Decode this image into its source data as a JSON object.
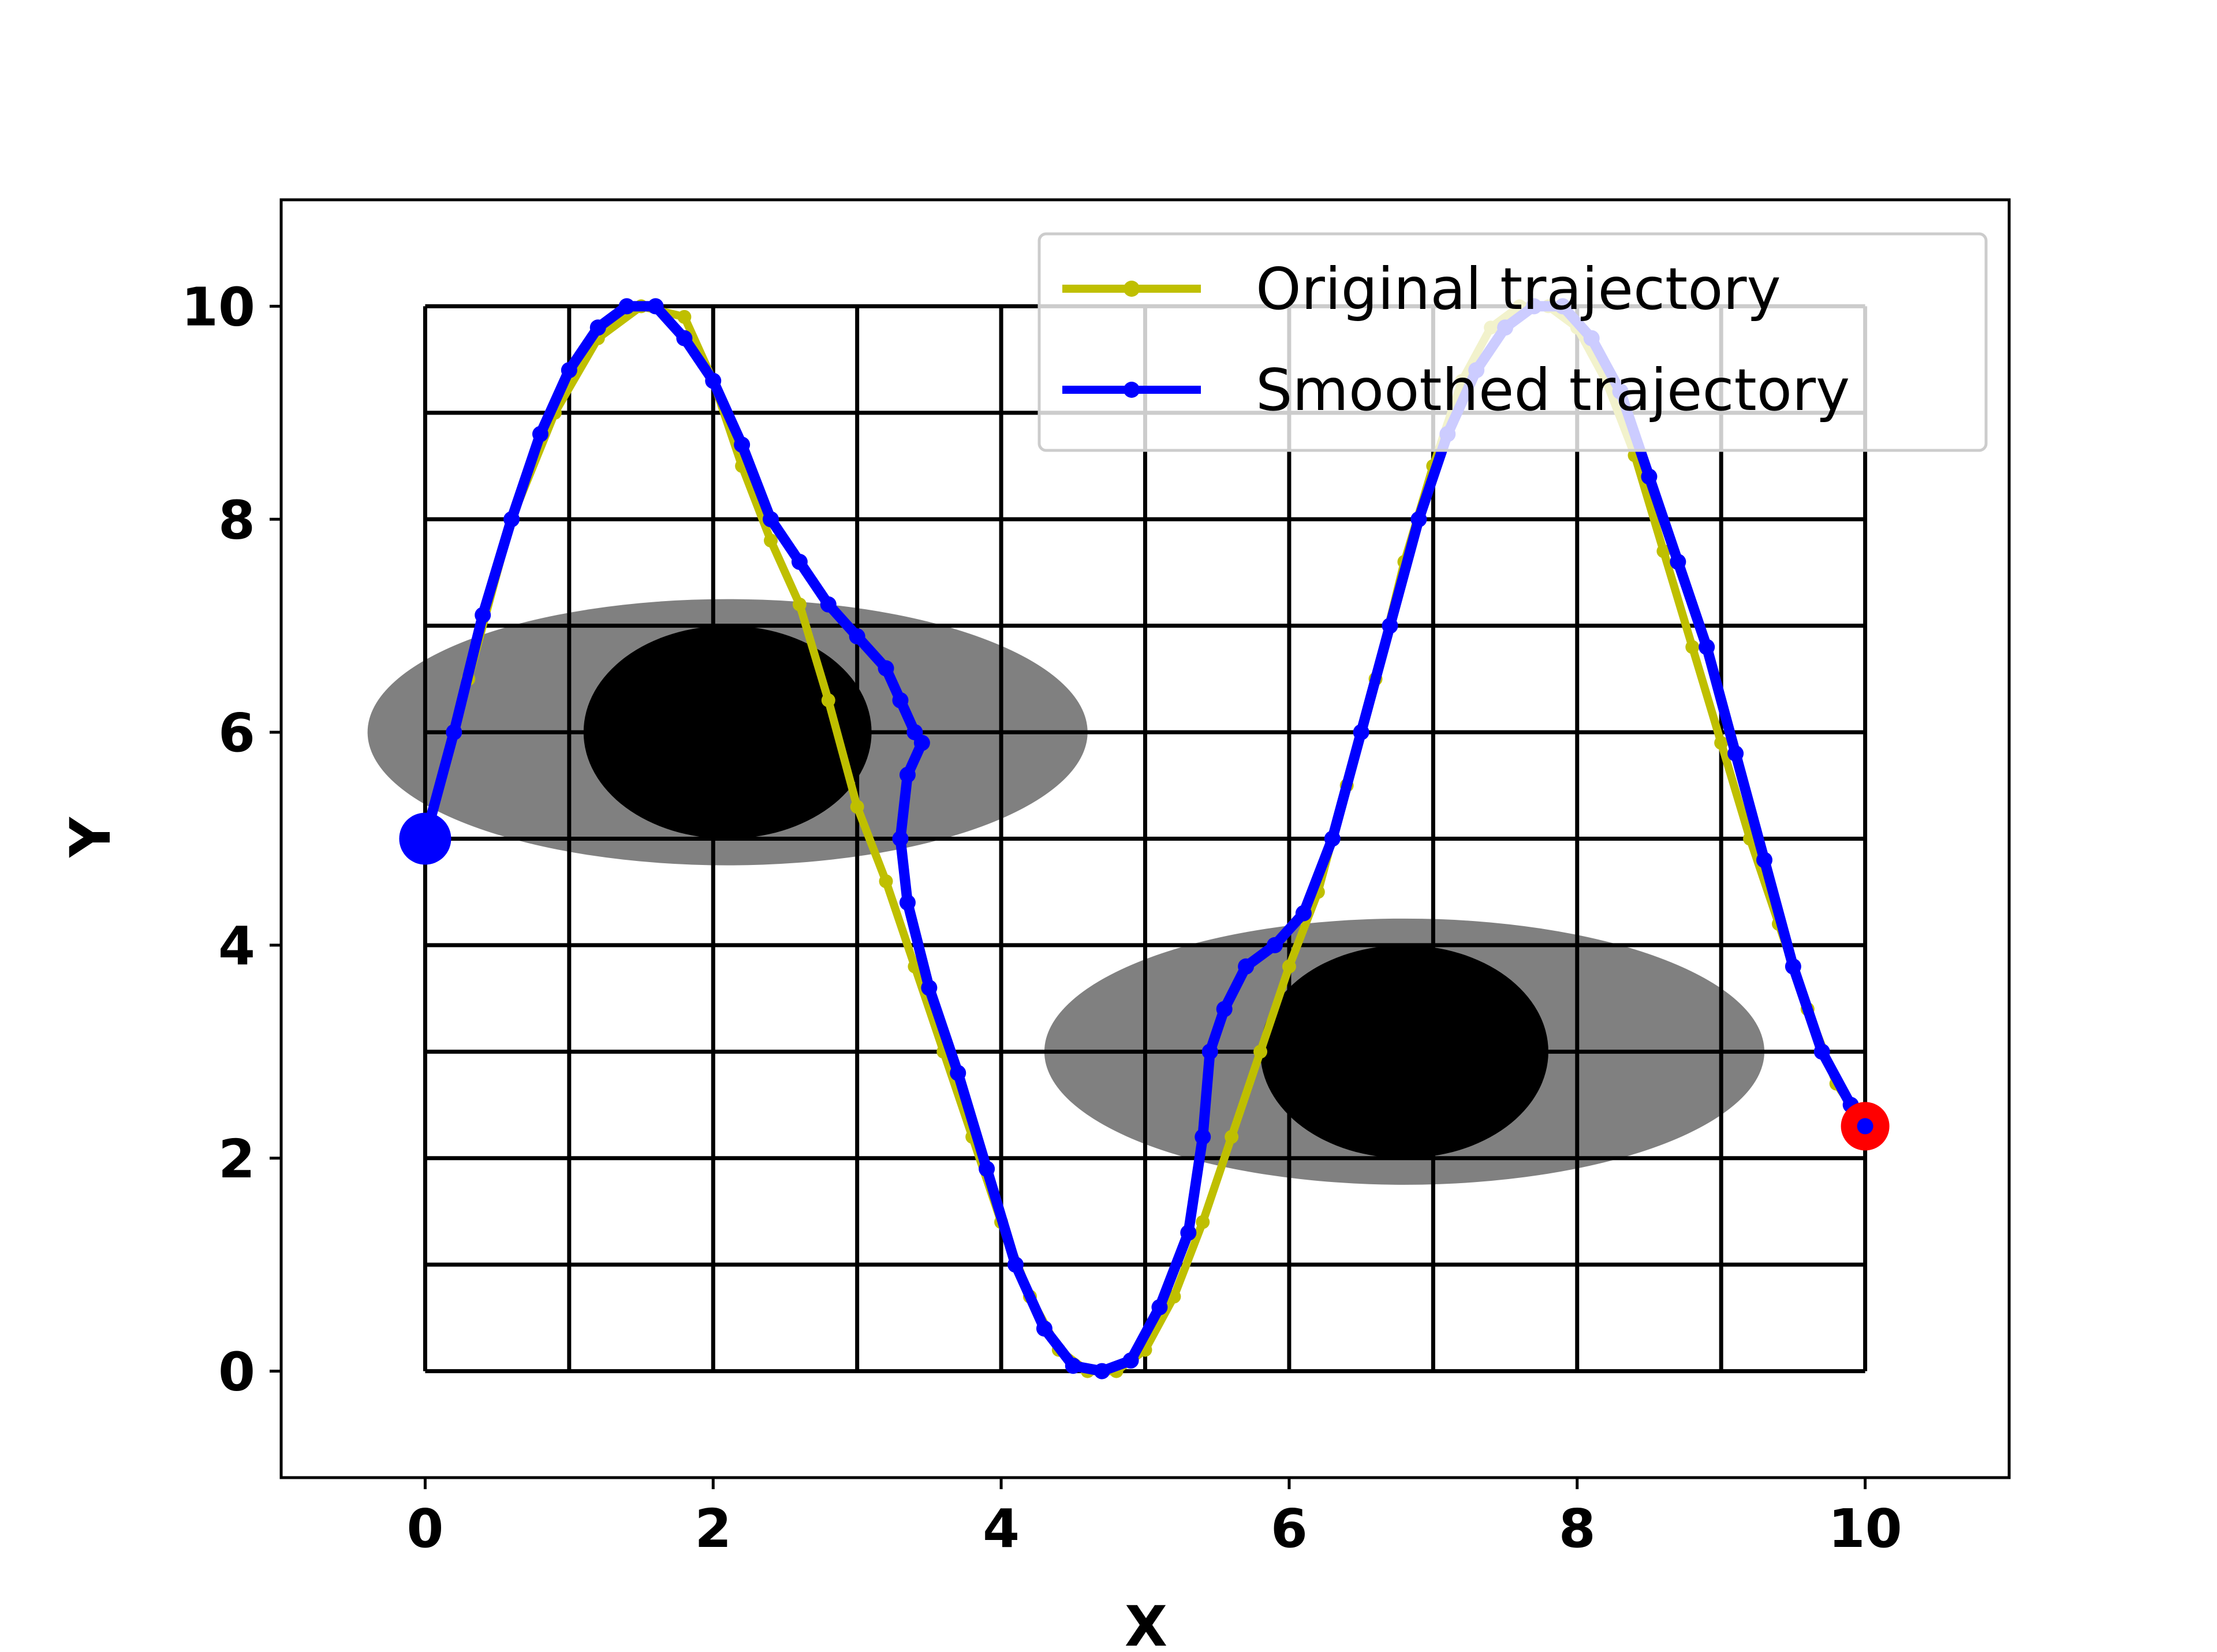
{
  "chart_data": {
    "type": "line",
    "xlabel": "X",
    "ylabel": "Y",
    "xlim": [
      -1,
      11
    ],
    "ylim": [
      -1,
      11
    ],
    "x_ticks": [
      0,
      2,
      4,
      6,
      8,
      10
    ],
    "y_ticks": [
      0,
      2,
      4,
      6,
      8,
      10
    ],
    "grid_lines": {
      "x_from": 0,
      "x_to": 10,
      "y_from": 0,
      "y_to": 10,
      "step": 1
    },
    "obstacles": [
      {
        "name": "obstacle-1",
        "cx": 2.1,
        "cy": 6.0,
        "rx_outer": 2.5,
        "ry_outer": 2.5,
        "rx_inner": 1.0,
        "ry_inner": 1.0
      },
      {
        "name": "obstacle-2",
        "cx": 6.8,
        "cy": 3.0,
        "rx_outer": 2.5,
        "ry_outer": 2.5,
        "rx_inner": 1.0,
        "ry_inner": 1.0
      }
    ],
    "start": {
      "x": 0,
      "y": 5
    },
    "goal": {
      "x": 10,
      "y": 2.3
    },
    "legend": {
      "position": "top-right",
      "entries": [
        "Original trajectory",
        "Smoothed trajectory"
      ]
    },
    "series": [
      {
        "name": "Original trajectory",
        "color": "#bfbf00",
        "x": [
          0,
          0.3,
          0.6,
          0.9,
          1.2,
          1.5,
          1.8,
          2.0,
          2.2,
          2.4,
          2.6,
          2.8,
          3.0,
          3.2,
          3.4,
          3.6,
          3.8,
          4.0,
          4.2,
          4.4,
          4.6,
          4.8,
          5.0,
          5.2,
          5.4,
          5.6,
          5.8,
          6.0,
          6.2,
          6.4,
          6.6,
          6.8,
          7.0,
          7.2,
          7.4,
          7.6,
          7.8,
          8.0,
          8.2,
          8.4,
          8.6,
          8.8,
          9.0,
          9.2,
          9.4,
          9.6,
          9.8,
          10.0
        ],
        "y": [
          5.0,
          6.5,
          8.0,
          9.0,
          9.7,
          10.0,
          9.9,
          9.3,
          8.5,
          7.8,
          7.2,
          6.3,
          5.3,
          4.6,
          3.8,
          3.0,
          2.2,
          1.4,
          0.7,
          0.2,
          0.0,
          0.0,
          0.2,
          0.7,
          1.4,
          2.2,
          3.0,
          3.8,
          4.5,
          5.5,
          6.5,
          7.6,
          8.5,
          9.3,
          9.8,
          10.0,
          10.0,
          9.8,
          9.3,
          8.6,
          7.7,
          6.8,
          5.9,
          5.0,
          4.2,
          3.4,
          2.7,
          2.3
        ]
      },
      {
        "name": "Smoothed trajectory",
        "color": "#0000ff",
        "x": [
          0,
          0.2,
          0.4,
          0.6,
          0.8,
          1.0,
          1.2,
          1.4,
          1.6,
          1.8,
          2.0,
          2.2,
          2.4,
          2.6,
          2.8,
          3.0,
          3.2,
          3.3,
          3.4,
          3.45,
          3.35,
          3.3,
          3.35,
          3.5,
          3.7,
          3.9,
          4.1,
          4.3,
          4.5,
          4.7,
          4.9,
          5.1,
          5.3,
          5.4,
          5.45,
          5.55,
          5.7,
          5.9,
          6.1,
          6.3,
          6.5,
          6.7,
          6.9,
          7.1,
          7.3,
          7.5,
          7.7,
          7.9,
          8.1,
          8.3,
          8.5,
          8.7,
          8.9,
          9.1,
          9.3,
          9.5,
          9.7,
          9.9,
          10.0
        ],
        "y": [
          5.0,
          6.0,
          7.1,
          8.0,
          8.8,
          9.4,
          9.8,
          10.0,
          10.0,
          9.7,
          9.3,
          8.7,
          8.0,
          7.6,
          7.2,
          6.9,
          6.6,
          6.3,
          6.0,
          5.9,
          5.6,
          5.0,
          4.4,
          3.6,
          2.8,
          1.9,
          1.0,
          0.4,
          0.05,
          0.0,
          0.1,
          0.6,
          1.3,
          2.2,
          3.0,
          3.4,
          3.8,
          4.0,
          4.3,
          5.0,
          6.0,
          7.0,
          8.0,
          8.8,
          9.4,
          9.8,
          10.0,
          10.0,
          9.7,
          9.2,
          8.4,
          7.6,
          6.8,
          5.8,
          4.8,
          3.8,
          3.0,
          2.5,
          2.3
        ]
      }
    ]
  }
}
